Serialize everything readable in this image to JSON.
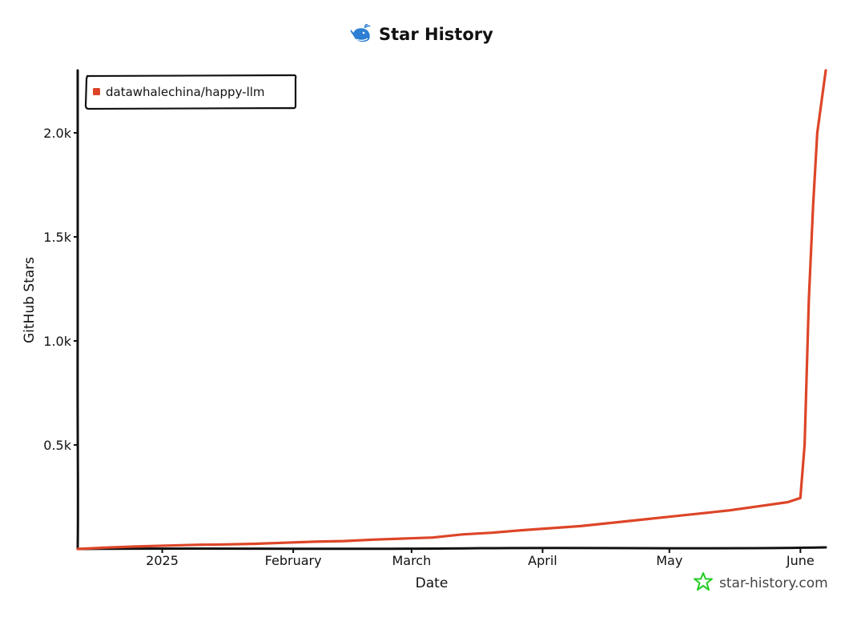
{
  "title": "Star History",
  "watermark": "star-history.com",
  "colors": {
    "series": "#dd4528",
    "axis": "#111111",
    "logo_whale": "#2d7fd3",
    "watermark_star": "#22cc22"
  },
  "icons": {
    "title_logo": "whale-icon",
    "watermark_logo": "star-icon"
  },
  "chart_data": {
    "type": "line",
    "title": "Star History",
    "xlabel": "Date",
    "ylabel": "GitHub Stars",
    "x_tick_labels": [
      "2025",
      "February",
      "March",
      "April",
      "May",
      "June"
    ],
    "y_tick_labels": [
      "0.5k",
      "1.0k",
      "1.5k",
      "2.0k"
    ],
    "x_tick_dates": [
      "2025-01-01",
      "2025-02-01",
      "2025-03-01",
      "2025-04-01",
      "2025-05-01",
      "2025-06-01"
    ],
    "y_ticks": [
      500,
      1000,
      1500,
      2000
    ],
    "xlim": [
      "2024-12-12",
      "2025-06-07"
    ],
    "ylim": [
      0,
      2300
    ],
    "legend_position": "top-left",
    "grid": false,
    "series": [
      {
        "name": "datawhalechina/happy-llm",
        "points": [
          [
            "2024-12-12",
            0
          ],
          [
            "2024-12-19",
            7
          ],
          [
            "2024-12-26",
            12
          ],
          [
            "2025-01-02",
            16
          ],
          [
            "2025-01-09",
            20
          ],
          [
            "2025-01-16",
            22
          ],
          [
            "2025-01-23",
            25
          ],
          [
            "2025-01-30",
            30
          ],
          [
            "2025-02-06",
            35
          ],
          [
            "2025-02-13",
            38
          ],
          [
            "2025-02-20",
            45
          ],
          [
            "2025-02-27",
            50
          ],
          [
            "2025-03-06",
            55
          ],
          [
            "2025-03-13",
            70
          ],
          [
            "2025-03-20",
            78
          ],
          [
            "2025-03-27",
            90
          ],
          [
            "2025-04-03",
            100
          ],
          [
            "2025-04-10",
            110
          ],
          [
            "2025-04-17",
            125
          ],
          [
            "2025-04-24",
            140
          ],
          [
            "2025-05-01",
            155
          ],
          [
            "2025-05-08",
            170
          ],
          [
            "2025-05-15",
            185
          ],
          [
            "2025-05-22",
            205
          ],
          [
            "2025-05-29",
            225
          ],
          [
            "2025-06-01",
            245
          ],
          [
            "2025-06-02",
            500
          ],
          [
            "2025-06-03",
            1200
          ],
          [
            "2025-06-04",
            1650
          ],
          [
            "2025-06-05",
            2000
          ],
          [
            "2025-06-06",
            2150
          ],
          [
            "2025-06-07",
            2300
          ]
        ]
      }
    ]
  }
}
